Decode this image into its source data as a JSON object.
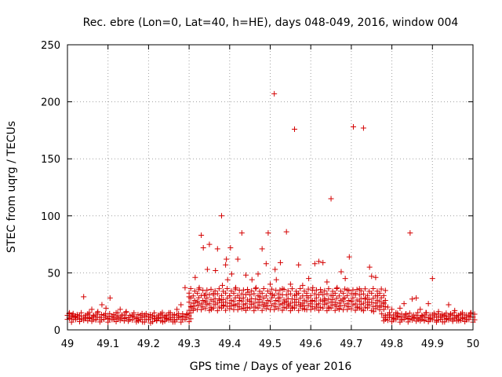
{
  "chart_data": {
    "type": "scatter",
    "title": "Rec. ebre (Lon=0, Lat=40, h=HE), days 048-049, 2016, window 004",
    "xlabel": "GPS time / Days of year 2016",
    "ylabel": "STEC from uqrg / TECUs",
    "xlim": [
      49,
      50
    ],
    "ylim": [
      0,
      250
    ],
    "xticks": [
      "49",
      "49.1",
      "49.2",
      "49.3",
      "49.4",
      "49.5",
      "49.6",
      "49.7",
      "49.8",
      "49.9",
      "50"
    ],
    "yticks": [
      "0",
      "50",
      "100",
      "150",
      "200",
      "250"
    ],
    "grid": true,
    "marker": "plus",
    "color": "#d40000",
    "points": [
      [
        49.005,
        15
      ],
      [
        49.005,
        10
      ],
      [
        49.012,
        13
      ],
      [
        49.018,
        11
      ],
      [
        49.025,
        12
      ],
      [
        49.03,
        9
      ],
      [
        49.04,
        29
      ],
      [
        49.045,
        11
      ],
      [
        49.05,
        14
      ],
      [
        49.055,
        10
      ],
      [
        49.06,
        18
      ],
      [
        49.065,
        12
      ],
      [
        49.07,
        9
      ],
      [
        49.075,
        16
      ],
      [
        49.08,
        11
      ],
      [
        49.085,
        22
      ],
      [
        49.09,
        13
      ],
      [
        49.095,
        19
      ],
      [
        49.1,
        10
      ],
      [
        49.105,
        28
      ],
      [
        49.11,
        12
      ],
      [
        49.115,
        9
      ],
      [
        49.12,
        15
      ],
      [
        49.125,
        11
      ],
      [
        49.13,
        18
      ],
      [
        49.135,
        13
      ],
      [
        49.14,
        10
      ],
      [
        49.145,
        16
      ],
      [
        49.15,
        9
      ],
      [
        49.16,
        12
      ],
      [
        49.17,
        10
      ],
      [
        49.175,
        8
      ],
      [
        49.18,
        11
      ],
      [
        49.185,
        7
      ],
      [
        49.19,
        13
      ],
      [
        49.2,
        9
      ],
      [
        49.205,
        6
      ],
      [
        49.21,
        12
      ],
      [
        49.215,
        10
      ],
      [
        49.22,
        8
      ],
      [
        49.225,
        11
      ],
      [
        49.23,
        14
      ],
      [
        49.235,
        7
      ],
      [
        49.24,
        12
      ],
      [
        49.245,
        10
      ],
      [
        49.25,
        15
      ],
      [
        49.255,
        9
      ],
      [
        49.26,
        13
      ],
      [
        49.265,
        7
      ],
      [
        49.27,
        18
      ],
      [
        49.275,
        11
      ],
      [
        49.28,
        22
      ],
      [
        49.285,
        12
      ],
      [
        49.29,
        37
      ],
      [
        49.295,
        14
      ],
      [
        49.3,
        29
      ],
      [
        49.305,
        20
      ],
      [
        49.31,
        17
      ],
      [
        49.315,
        46
      ],
      [
        49.32,
        24
      ],
      [
        49.325,
        37
      ],
      [
        49.33,
        83
      ],
      [
        49.335,
        72
      ],
      [
        49.338,
        30
      ],
      [
        49.34,
        24
      ],
      [
        49.345,
        53
      ],
      [
        49.35,
        75
      ],
      [
        49.355,
        18
      ],
      [
        49.36,
        32
      ],
      [
        49.365,
        52
      ],
      [
        49.37,
        71
      ],
      [
        49.375,
        26
      ],
      [
        49.38,
        100
      ],
      [
        49.382,
        39
      ],
      [
        49.385,
        21
      ],
      [
        49.39,
        57
      ],
      [
        49.392,
        62
      ],
      [
        49.395,
        44
      ],
      [
        49.4,
        30
      ],
      [
        49.402,
        72
      ],
      [
        49.405,
        49
      ],
      [
        49.41,
        22
      ],
      [
        49.415,
        37
      ],
      [
        49.42,
        62
      ],
      [
        49.425,
        28
      ],
      [
        49.43,
        85
      ],
      [
        49.435,
        19
      ],
      [
        49.44,
        48
      ],
      [
        49.445,
        33
      ],
      [
        49.45,
        25
      ],
      [
        49.455,
        44
      ],
      [
        49.46,
        20
      ],
      [
        49.465,
        37
      ],
      [
        49.47,
        49
      ],
      [
        49.475,
        29
      ],
      [
        49.48,
        71
      ],
      [
        49.485,
        22
      ],
      [
        49.49,
        58
      ],
      [
        49.495,
        85
      ],
      [
        49.5,
        40
      ],
      [
        49.505,
        31
      ],
      [
        49.51,
        207
      ],
      [
        49.512,
        53
      ],
      [
        49.515,
        44
      ],
      [
        49.52,
        28
      ],
      [
        49.525,
        59
      ],
      [
        49.53,
        36
      ],
      [
        49.535,
        24
      ],
      [
        49.54,
        86
      ],
      [
        49.545,
        21
      ],
      [
        49.55,
        40
      ],
      [
        49.555,
        19
      ],
      [
        49.56,
        176
      ],
      [
        49.565,
        31
      ],
      [
        49.57,
        57
      ],
      [
        49.575,
        22
      ],
      [
        49.58,
        39
      ],
      [
        49.585,
        18
      ],
      [
        49.59,
        30
      ],
      [
        49.595,
        45
      ],
      [
        49.6,
        25
      ],
      [
        49.605,
        37
      ],
      [
        49.61,
        58
      ],
      [
        49.615,
        20
      ],
      [
        49.62,
        60
      ],
      [
        49.625,
        33
      ],
      [
        49.63,
        59
      ],
      [
        49.635,
        26
      ],
      [
        49.64,
        42
      ],
      [
        49.645,
        19
      ],
      [
        49.65,
        115
      ],
      [
        49.655,
        30
      ],
      [
        49.66,
        22
      ],
      [
        49.665,
        37
      ],
      [
        49.67,
        18
      ],
      [
        49.675,
        51
      ],
      [
        49.68,
        27
      ],
      [
        49.685,
        45
      ],
      [
        49.69,
        35
      ],
      [
        49.695,
        64
      ],
      [
        49.7,
        25
      ],
      [
        49.705,
        178
      ],
      [
        49.71,
        32
      ],
      [
        49.715,
        20
      ],
      [
        49.72,
        36
      ],
      [
        49.725,
        18
      ],
      [
        49.73,
        177
      ],
      [
        49.735,
        28
      ],
      [
        49.74,
        22
      ],
      [
        49.745,
        55
      ],
      [
        49.75,
        47
      ],
      [
        49.755,
        16
      ],
      [
        49.76,
        46
      ],
      [
        49.765,
        30
      ],
      [
        49.77,
        20
      ],
      [
        49.775,
        14
      ],
      [
        49.78,
        24
      ],
      [
        49.785,
        11
      ],
      [
        49.79,
        20
      ],
      [
        49.795,
        13
      ],
      [
        49.8,
        18
      ],
      [
        49.805,
        10
      ],
      [
        49.81,
        15
      ],
      [
        49.815,
        12
      ],
      [
        49.82,
        19
      ],
      [
        49.825,
        9
      ],
      [
        49.83,
        23
      ],
      [
        49.835,
        14
      ],
      [
        49.84,
        10
      ],
      [
        49.845,
        85
      ],
      [
        49.85,
        27
      ],
      [
        49.855,
        11
      ],
      [
        49.86,
        28
      ],
      [
        49.865,
        9
      ],
      [
        49.87,
        18
      ],
      [
        49.875,
        12
      ],
      [
        49.88,
        8
      ],
      [
        49.885,
        15
      ],
      [
        49.89,
        23
      ],
      [
        49.895,
        10
      ],
      [
        49.9,
        45
      ],
      [
        49.905,
        13
      ],
      [
        49.91,
        8
      ],
      [
        49.915,
        16
      ],
      [
        49.92,
        11
      ],
      [
        49.925,
        7
      ],
      [
        49.93,
        13
      ],
      [
        49.935,
        10
      ],
      [
        49.94,
        22
      ],
      [
        49.945,
        14
      ],
      [
        49.95,
        9
      ],
      [
        49.955,
        17
      ],
      [
        49.96,
        12
      ],
      [
        49.965,
        8
      ],
      [
        49.97,
        14
      ],
      [
        49.975,
        10
      ],
      [
        49.98,
        13
      ],
      [
        49.985,
        9
      ],
      [
        49.99,
        12
      ],
      [
        49.995,
        15
      ]
    ],
    "bands": [
      {
        "x0": 49.0,
        "x1": 49.3,
        "ys": [
          8,
          10,
          12,
          14
        ]
      },
      {
        "x0": 49.3,
        "x1": 49.78,
        "ys": [
          18,
          21,
          24,
          27,
          31,
          35
        ]
      },
      {
        "x0": 49.78,
        "x1": 50.0,
        "ys": [
          8,
          10,
          12,
          14
        ]
      }
    ]
  }
}
